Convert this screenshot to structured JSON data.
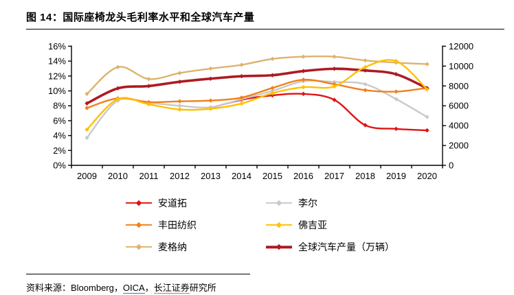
{
  "figure": {
    "title": "图  14：国际座椅龙头毛利率水平和全球汽车产量",
    "source": {
      "segments": [
        {
          "text": "资料来源：Bloomberg，",
          "style": "plain"
        },
        {
          "text": "OICA",
          "style": "blue"
        },
        {
          "text": "，",
          "style": "plain"
        },
        {
          "text": "长江证券",
          "style": "red"
        },
        {
          "text": "研究所",
          "style": "plain"
        }
      ]
    }
  },
  "chart_data": {
    "type": "line",
    "x": [
      "2009",
      "2010",
      "2011",
      "2012",
      "2013",
      "2014",
      "2015",
      "2016",
      "2017",
      "2018",
      "2019",
      "2020"
    ],
    "left_axis": {
      "min": 0,
      "max": 16,
      "step": 2,
      "format": "percent",
      "tick_labels": [
        "0%",
        "2%",
        "4%",
        "6%",
        "8%",
        "10%",
        "12%",
        "14%",
        "16%"
      ]
    },
    "right_axis": {
      "min": 0,
      "max": 12000,
      "step": 2000,
      "tick_labels": [
        "0",
        "2000",
        "4000",
        "6000",
        "8000",
        "10000",
        "12000"
      ]
    },
    "grid": false,
    "legend_position": "bottom",
    "series": [
      {
        "name": "安道拓",
        "color": "#e01212",
        "axis": "left",
        "line_width": 2.4,
        "values": [
          null,
          null,
          null,
          null,
          7.7,
          8.8,
          9.4,
          9.6,
          8.8,
          5.4,
          4.9,
          4.7
        ]
      },
      {
        "name": "李尔",
        "color": "#c9c9c9",
        "axis": "left",
        "line_width": 2.4,
        "values": [
          3.7,
          8.7,
          8.4,
          8.0,
          7.8,
          8.9,
          10.0,
          11.3,
          11.2,
          10.9,
          8.9,
          6.5
        ]
      },
      {
        "name": "丰田纺织",
        "color": "#f08019",
        "axis": "left",
        "line_width": 2.4,
        "values": [
          7.7,
          9.0,
          8.5,
          8.6,
          8.7,
          9.1,
          10.4,
          11.5,
          10.9,
          10.1,
          9.9,
          10.4
        ]
      },
      {
        "name": "佛吉亚",
        "color": "#ffc000",
        "axis": "left",
        "line_width": 2.4,
        "values": [
          4.8,
          8.9,
          8.2,
          7.5,
          7.6,
          8.3,
          9.7,
          10.5,
          10.6,
          13.2,
          14.0,
          10.2
        ]
      },
      {
        "name": "麦格纳",
        "color": "#ddb26f",
        "axis": "left",
        "line_width": 2.4,
        "values": [
          9.6,
          13.2,
          11.6,
          12.4,
          13.0,
          13.5,
          14.3,
          14.6,
          14.6,
          14.1,
          13.8,
          13.6
        ]
      },
      {
        "name": "全球汽车产量（万辆）",
        "color": "#ae1a22",
        "axis": "right",
        "line_width": 3.6,
        "values": [
          6240,
          7760,
          7990,
          8420,
          8730,
          8980,
          9080,
          9500,
          9730,
          9560,
          9180,
          7760
        ]
      }
    ],
    "draw_order": [
      "安道拓",
      "李尔",
      "麦格纳",
      "丰田纺织",
      "全球汽车产量（万辆）",
      "佛吉亚"
    ],
    "legend_layout": [
      [
        "安道拓",
        "李尔"
      ],
      [
        "丰田纺织",
        "佛吉亚"
      ],
      [
        "麦格纳",
        "全球汽车产量（万辆）"
      ]
    ]
  }
}
